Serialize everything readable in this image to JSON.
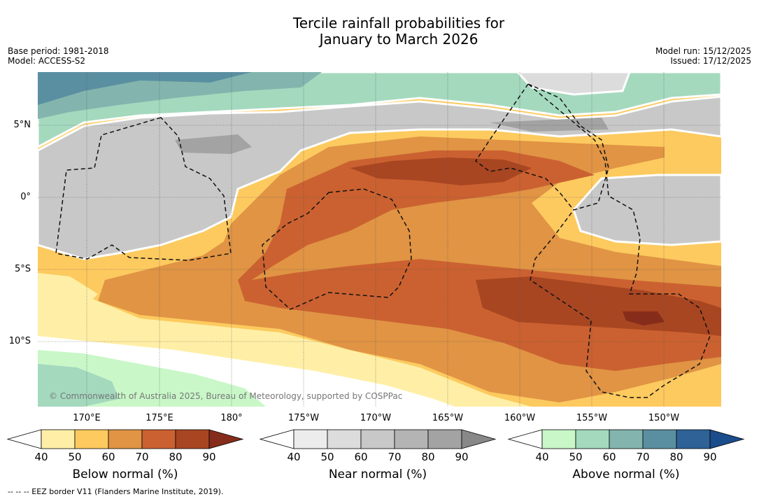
{
  "title_line1": "Tercile rainfall probabilities for",
  "title_line2": "January to March 2026",
  "base_period": "Base period: 1981-2018",
  "model": "Model: ACCESS-S2",
  "model_run": "Model run: 15/12/2025",
  "issued": "Issued: 17/12/2025",
  "copyright": "© Commonwealth of Australia 2025, Bureau of Meteorology, supported by COSPPac",
  "footer": "--  --  -- EEZ border V11 (Flanders Marine Institute, 2019).",
  "lat_labels": [
    "5°N",
    "0°",
    "5°S",
    "10°S"
  ],
  "lon_labels": [
    "170°E",
    "175°E",
    "180°",
    "175°W",
    "170°W",
    "165°W",
    "160°W",
    "155°W",
    "150°W"
  ],
  "colorbars": [
    {
      "title": "Below normal (%)",
      "ticks": [
        "40",
        "50",
        "60",
        "70",
        "80",
        "90"
      ],
      "colors": [
        "#ffefa6",
        "#fdca5f",
        "#e09444",
        "#cb6130",
        "#a84622",
        "#862c1a"
      ]
    },
    {
      "title": "Near normal (%)",
      "ticks": [
        "40",
        "50",
        "60",
        "70",
        "80",
        "90"
      ],
      "colors": [
        "#ececec",
        "#dcdcdc",
        "#c8c8c8",
        "#b4b4b4",
        "#a3a3a3",
        "#888888"
      ]
    },
    {
      "title": "Above normal (%)",
      "ticks": [
        "40",
        "50",
        "60",
        "70",
        "80",
        "90"
      ],
      "colors": [
        "#c9f7c8",
        "#a4d9be",
        "#83b5ae",
        "#5a8fa1",
        "#2f6296",
        "#1b4c8c"
      ]
    }
  ],
  "colors": {
    "white": "#ffffff",
    "border": "#111111"
  }
}
